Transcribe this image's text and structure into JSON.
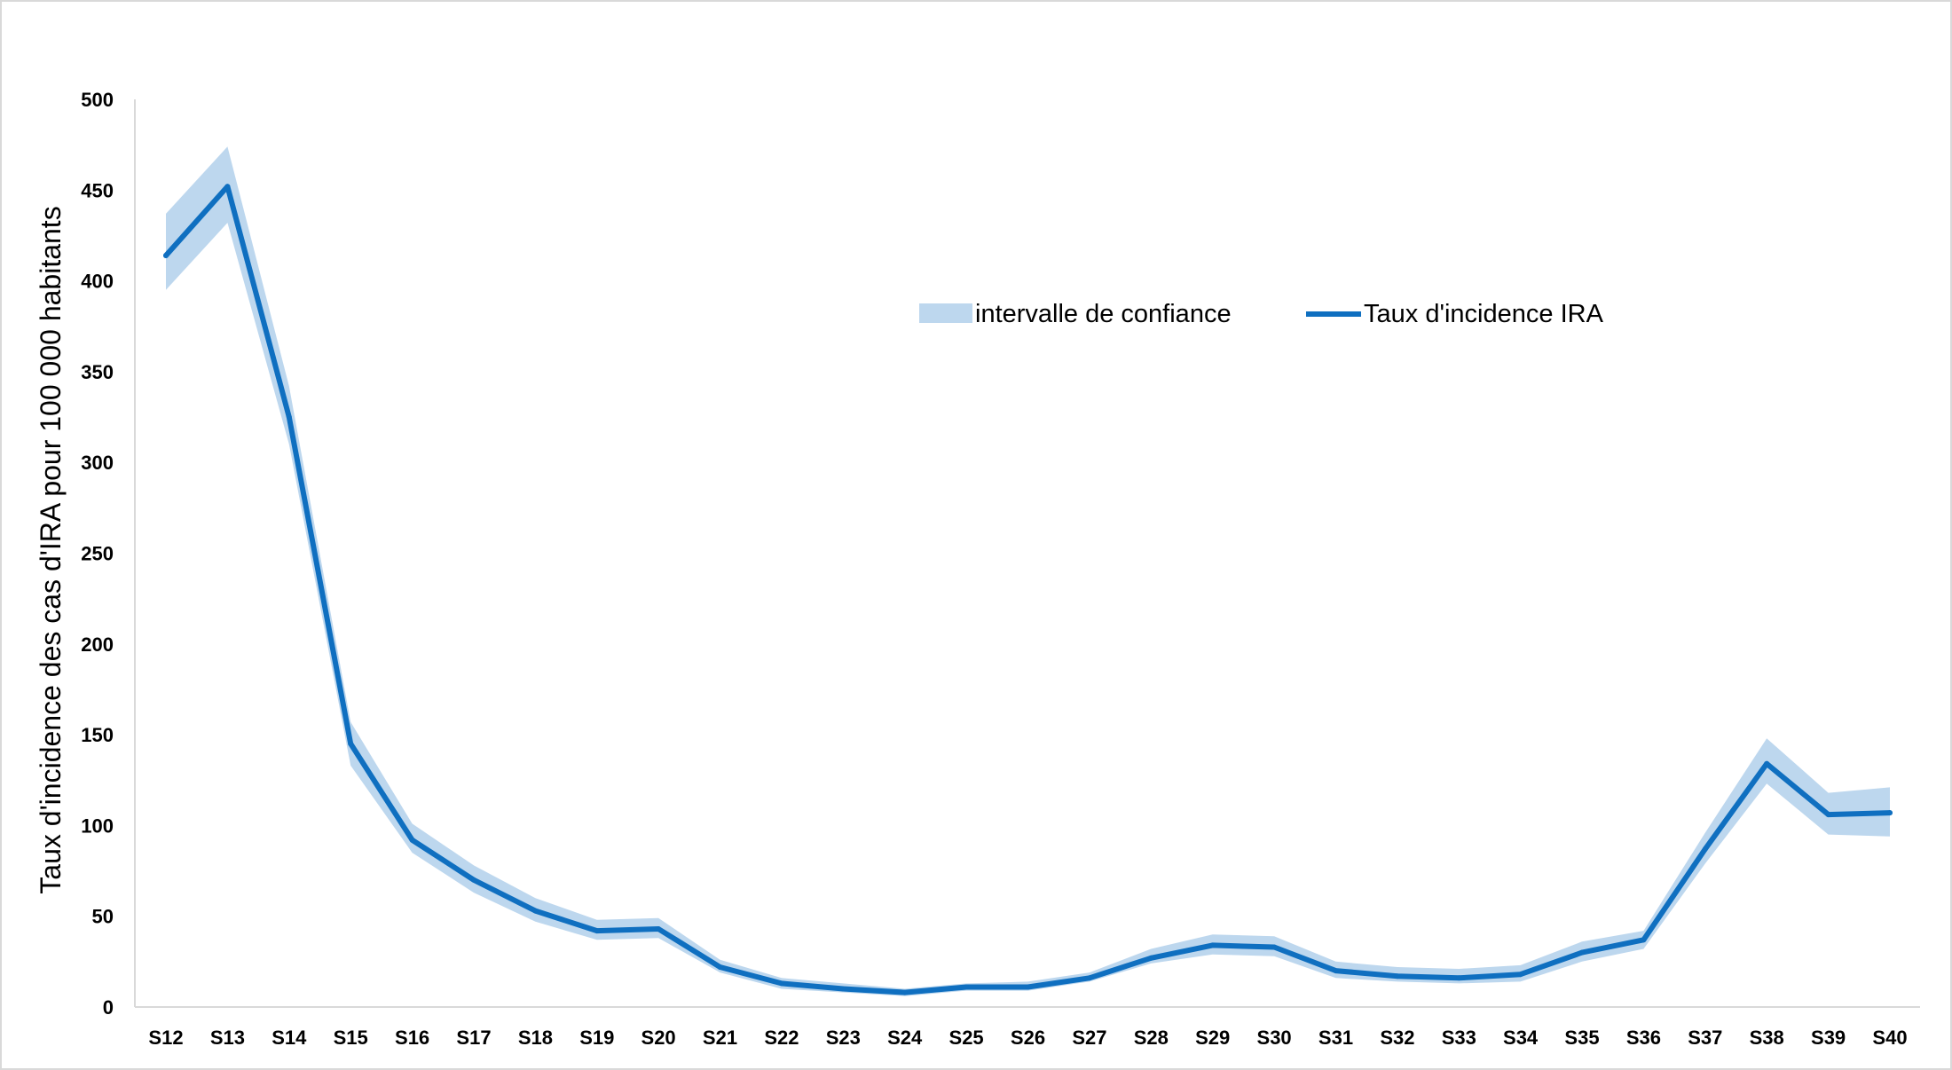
{
  "chart_data": {
    "type": "line",
    "title": "",
    "xlabel": "",
    "ylabel": "Taux d'incidence des cas d'IRA pour 100 000 habitants",
    "ylim": [
      0,
      500
    ],
    "yticks": [
      "0",
      "50",
      "100",
      "150",
      "200",
      "250",
      "300",
      "350",
      "400",
      "450",
      "500"
    ],
    "categories": [
      "S12",
      "S13",
      "S14",
      "S15",
      "S16",
      "S17",
      "S18",
      "S19",
      "S20",
      "S21",
      "S22",
      "S23",
      "S24",
      "S25",
      "S26",
      "S27",
      "S28",
      "S29",
      "S30",
      "S31",
      "S32",
      "S33",
      "S34",
      "S35",
      "S36",
      "S37",
      "S38",
      "S39",
      "S40"
    ],
    "series": [
      {
        "name": "Taux d'incidence IRA",
        "color": "#0f6fc0",
        "values": [
          414,
          452,
          325,
          145,
          92,
          70,
          53,
          42,
          43,
          22,
          13,
          10,
          8,
          11,
          11,
          16,
          27,
          34,
          33,
          20,
          17,
          16,
          18,
          30,
          37,
          87,
          134,
          106,
          107
        ]
      },
      {
        "name": "intervalle de confiance",
        "type": "area",
        "color": "#bdd7ee",
        "lower": [
          395,
          432,
          310,
          133,
          85,
          63,
          47,
          37,
          38,
          19,
          10,
          8,
          6,
          9,
          9,
          14,
          24,
          29,
          28,
          16,
          14,
          13,
          14,
          25,
          32,
          79,
          123,
          95,
          94
        ],
        "upper": [
          437,
          474,
          342,
          157,
          101,
          78,
          60,
          48,
          49,
          26,
          16,
          13,
          10,
          13,
          14,
          19,
          32,
          40,
          39,
          25,
          22,
          21,
          23,
          36,
          42,
          96,
          148,
          118,
          121
        ]
      }
    ],
    "legend": {
      "position": "top-right",
      "items": [
        {
          "label": "intervalle de confiance",
          "color": "#bdd7ee"
        },
        {
          "label": "Taux d'incidence IRA",
          "color": "#0f6fc0"
        }
      ]
    },
    "grid": false
  }
}
